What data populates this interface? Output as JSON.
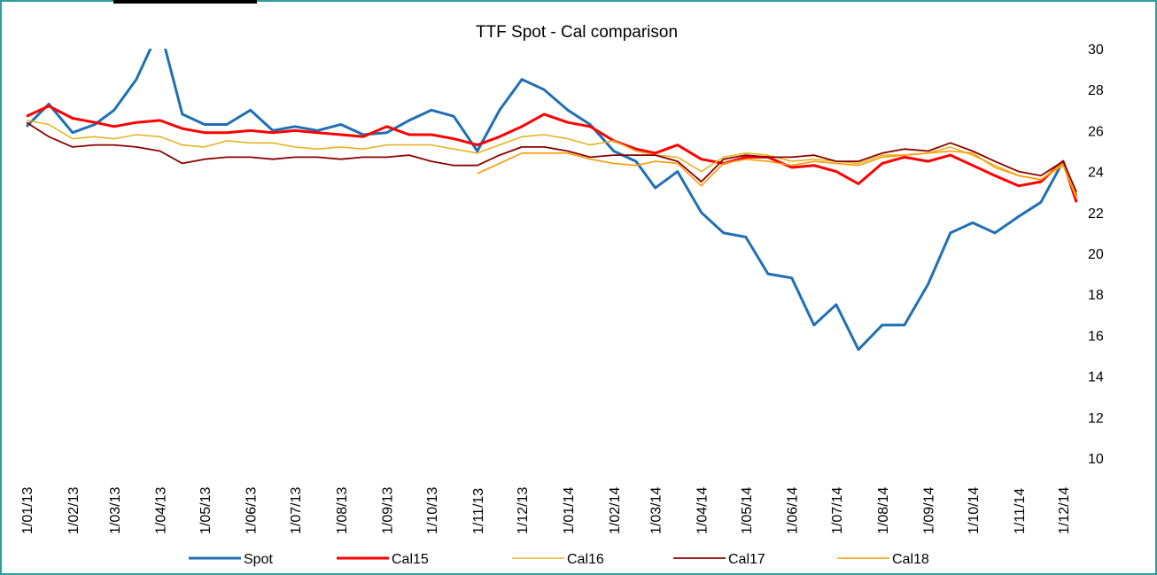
{
  "chart_data": {
    "type": "line",
    "title": "TTF Spot - Cal comparison",
    "x": [
      "2013-01-01",
      "2013-01-16",
      "2013-02-01",
      "2013-02-16",
      "2013-03-01",
      "2013-03-16",
      "2013-04-01",
      "2013-04-16",
      "2013-05-01",
      "2013-05-16",
      "2013-06-01",
      "2013-06-16",
      "2013-07-01",
      "2013-07-16",
      "2013-08-01",
      "2013-08-16",
      "2013-09-01",
      "2013-09-16",
      "2013-10-01",
      "2013-10-16",
      "2013-11-01",
      "2013-11-16",
      "2013-12-01",
      "2013-12-16",
      "2014-01-01",
      "2014-01-16",
      "2014-02-01",
      "2014-02-16",
      "2014-03-01",
      "2014-03-16",
      "2014-04-01",
      "2014-04-16",
      "2014-05-01",
      "2014-05-16",
      "2014-06-01",
      "2014-06-16",
      "2014-07-01",
      "2014-07-16",
      "2014-08-01",
      "2014-08-16",
      "2014-09-01",
      "2014-09-16",
      "2014-10-01",
      "2014-10-16",
      "2014-11-01",
      "2014-11-16",
      "2014-12-01",
      "2014-12-10"
    ],
    "series": [
      {
        "name": "Spot",
        "color": "#1f6fb5",
        "values": [
          26.2,
          27.3,
          25.9,
          26.3,
          27.0,
          28.5,
          31,
          26.8,
          26.3,
          26.3,
          27.0,
          26.0,
          26.2,
          26.0,
          26.3,
          25.8,
          25.9,
          26.5,
          27.0,
          26.7,
          25.0,
          27.0,
          28.5,
          28.0,
          27.0,
          26.3,
          25.0,
          24.5,
          23.2,
          24.0,
          22.0,
          21.0,
          20.8,
          19.0,
          18.8,
          16.5,
          17.5,
          15.3,
          16.5,
          16.5,
          18.5,
          21.0,
          21.5,
          21.0,
          21.8,
          22.5,
          24.5,
          22.8
        ]
      },
      {
        "name": "Cal15",
        "color": "#ff0000",
        "values": [
          26.7,
          27.2,
          26.6,
          26.4,
          26.2,
          26.4,
          26.5,
          26.1,
          25.9,
          25.9,
          26.0,
          25.9,
          26.0,
          25.9,
          25.8,
          25.7,
          26.2,
          25.8,
          25.8,
          25.6,
          25.3,
          25.7,
          26.2,
          26.8,
          26.4,
          26.2,
          25.5,
          25.1,
          24.9,
          25.3,
          24.6,
          24.4,
          24.7,
          24.7,
          24.2,
          24.3,
          24.0,
          23.4,
          24.4,
          24.7,
          24.5,
          24.8,
          24.3,
          23.8,
          23.3,
          23.5,
          24.5,
          22.5
        ]
      },
      {
        "name": "Cal16",
        "color": "#e6b422",
        "values": [
          26.5,
          26.3,
          25.6,
          25.7,
          25.6,
          25.8,
          25.7,
          25.3,
          25.2,
          25.5,
          25.4,
          25.4,
          25.2,
          25.1,
          25.2,
          25.1,
          25.3,
          25.3,
          25.3,
          25.1,
          24.9,
          25.3,
          25.7,
          25.8,
          25.6,
          25.3,
          25.5,
          25.0,
          24.8,
          24.7,
          24.0,
          24.7,
          24.9,
          24.8,
          24.5,
          24.6,
          24.5,
          24.4,
          24.8,
          24.8,
          24.9,
          25.2,
          24.8,
          24.3,
          23.8,
          23.6,
          24.4,
          22.8
        ]
      },
      {
        "name": "Cal17",
        "color": "#8b0000",
        "values": [
          26.4,
          25.7,
          25.2,
          25.3,
          25.3,
          25.2,
          25.0,
          24.4,
          24.6,
          24.7,
          24.7,
          24.6,
          24.7,
          24.7,
          24.6,
          24.7,
          24.7,
          24.8,
          24.5,
          24.3,
          24.3,
          24.8,
          25.2,
          25.2,
          25.0,
          24.7,
          24.8,
          24.8,
          24.8,
          24.5,
          23.5,
          24.6,
          24.8,
          24.7,
          24.7,
          24.8,
          24.5,
          24.5,
          24.9,
          25.1,
          25.0,
          25.4,
          25.0,
          24.5,
          24.0,
          23.8,
          24.5,
          23.0
        ]
      },
      {
        "name": "Cal18",
        "color": "#ff9900",
        "values": [
          null,
          null,
          null,
          null,
          null,
          null,
          null,
          null,
          null,
          null,
          null,
          null,
          null,
          null,
          null,
          null,
          null,
          null,
          null,
          null,
          23.9,
          24.4,
          24.9,
          24.9,
          24.9,
          24.6,
          24.4,
          24.3,
          24.5,
          24.4,
          23.3,
          24.4,
          24.6,
          24.5,
          24.3,
          24.5,
          24.4,
          24.3,
          24.7,
          24.8,
          24.9,
          25.0,
          24.9,
          24.2,
          23.8,
          23.6,
          24.3,
          22.7
        ]
      }
    ],
    "ylim": [
      10,
      30
    ],
    "yticks": [
      10,
      12,
      14,
      16,
      18,
      20,
      22,
      24,
      26,
      28,
      30
    ],
    "xticks": [
      {
        "value": "2013-01-01",
        "label": "1/01/13"
      },
      {
        "value": "2013-02-01",
        "label": "1/02/13"
      },
      {
        "value": "2013-03-01",
        "label": "1/03/13"
      },
      {
        "value": "2013-04-01",
        "label": "1/04/13"
      },
      {
        "value": "2013-05-01",
        "label": "1/05/13"
      },
      {
        "value": "2013-06-01",
        "label": "1/06/13"
      },
      {
        "value": "2013-07-01",
        "label": "1/07/13"
      },
      {
        "value": "2013-08-01",
        "label": "1/08/13"
      },
      {
        "value": "2013-09-01",
        "label": "1/09/13"
      },
      {
        "value": "2013-10-01",
        "label": "1/10/13"
      },
      {
        "value": "2013-11-01",
        "label": "1/11/13"
      },
      {
        "value": "2013-12-01",
        "label": "1/12/13"
      },
      {
        "value": "2014-01-01",
        "label": "1/01/14"
      },
      {
        "value": "2014-02-01",
        "label": "1/02/14"
      },
      {
        "value": "2014-03-01",
        "label": "1/03/14"
      },
      {
        "value": "2014-04-01",
        "label": "1/04/14"
      },
      {
        "value": "2014-05-01",
        "label": "1/05/14"
      },
      {
        "value": "2014-06-01",
        "label": "1/06/14"
      },
      {
        "value": "2014-07-01",
        "label": "1/07/14"
      },
      {
        "value": "2014-08-01",
        "label": "1/08/14"
      },
      {
        "value": "2014-09-01",
        "label": "1/09/14"
      },
      {
        "value": "2014-10-01",
        "label": "1/10/14"
      },
      {
        "value": "2014-11-01",
        "label": "1/11/14"
      },
      {
        "value": "2014-12-01",
        "label": "1/12/14"
      }
    ],
    "grid": false,
    "legend": "bottom",
    "y_axis_side": "right"
  }
}
